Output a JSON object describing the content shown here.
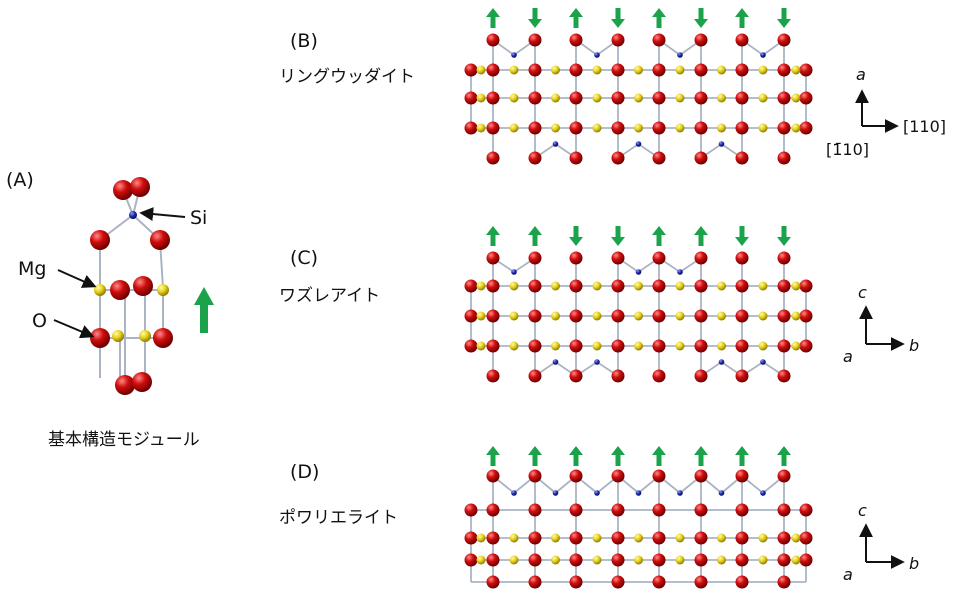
{
  "panelA": {
    "label": "(A)",
    "caption": "基本構造モジュール",
    "atoms": {
      "si": "Si",
      "mg": "Mg",
      "o": "O"
    }
  },
  "panelB": {
    "label": "(B)",
    "name": "リングウッダイト",
    "arrows": [
      "up",
      "down",
      "up",
      "down",
      "up",
      "down",
      "up",
      "down"
    ],
    "axes": {
      "vertical": "a",
      "horizontal": "[110]",
      "depth": "[1̄10]"
    }
  },
  "panelC": {
    "label": "(C)",
    "name": "ワズレアイト",
    "arrows": [
      "up",
      "up",
      "down",
      "down",
      "up",
      "up",
      "down",
      "down"
    ],
    "axes": {
      "vertical": "c",
      "horizontal": "b",
      "depth": "a"
    }
  },
  "panelD": {
    "label": "(D)",
    "name": "ポワリエライト",
    "arrows": [
      "up",
      "up",
      "up",
      "up",
      "up",
      "up",
      "up",
      "up"
    ],
    "axes": {
      "vertical": "c",
      "horizontal": "b",
      "depth": "a"
    }
  },
  "colors": {
    "oxygen": "#d10d0d",
    "magnesium": "#e8d21e",
    "silicon": "#1c2aa8",
    "bond": "#aab4c4",
    "arrow": "#1aa34a"
  }
}
